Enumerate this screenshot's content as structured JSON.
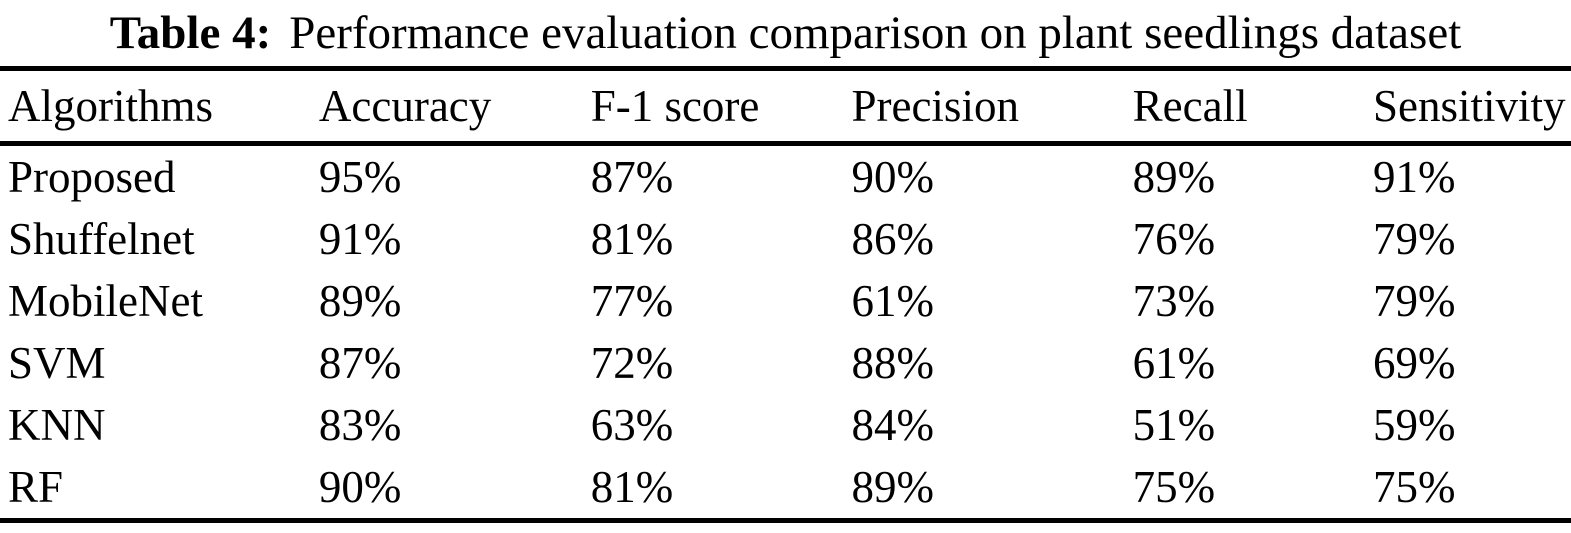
{
  "caption": {
    "label": "Table 4:",
    "text": "Performance evaluation comparison on plant seedlings dataset"
  },
  "table": {
    "headers": [
      "Algorithms",
      "Accuracy",
      "F-1 score",
      "Precision",
      "Recall",
      "Sensitivity"
    ],
    "rows": [
      [
        "Proposed",
        "95%",
        "87%",
        "90%",
        "89%",
        "91%"
      ],
      [
        "Shuffelnet",
        "91%",
        "81%",
        "86%",
        "76%",
        "79%"
      ],
      [
        "MobileNet",
        "89%",
        "77%",
        "61%",
        "73%",
        "79%"
      ],
      [
        "SVM",
        "87%",
        "72%",
        "88%",
        "61%",
        "69%"
      ],
      [
        "KNN",
        "83%",
        "63%",
        "84%",
        "51%",
        "59%"
      ],
      [
        "RF",
        "90%",
        "81%",
        "89%",
        "75%",
        "75%"
      ]
    ]
  },
  "colors": {
    "text": "#000000",
    "background": "#ffffff",
    "rule": "#000000"
  }
}
